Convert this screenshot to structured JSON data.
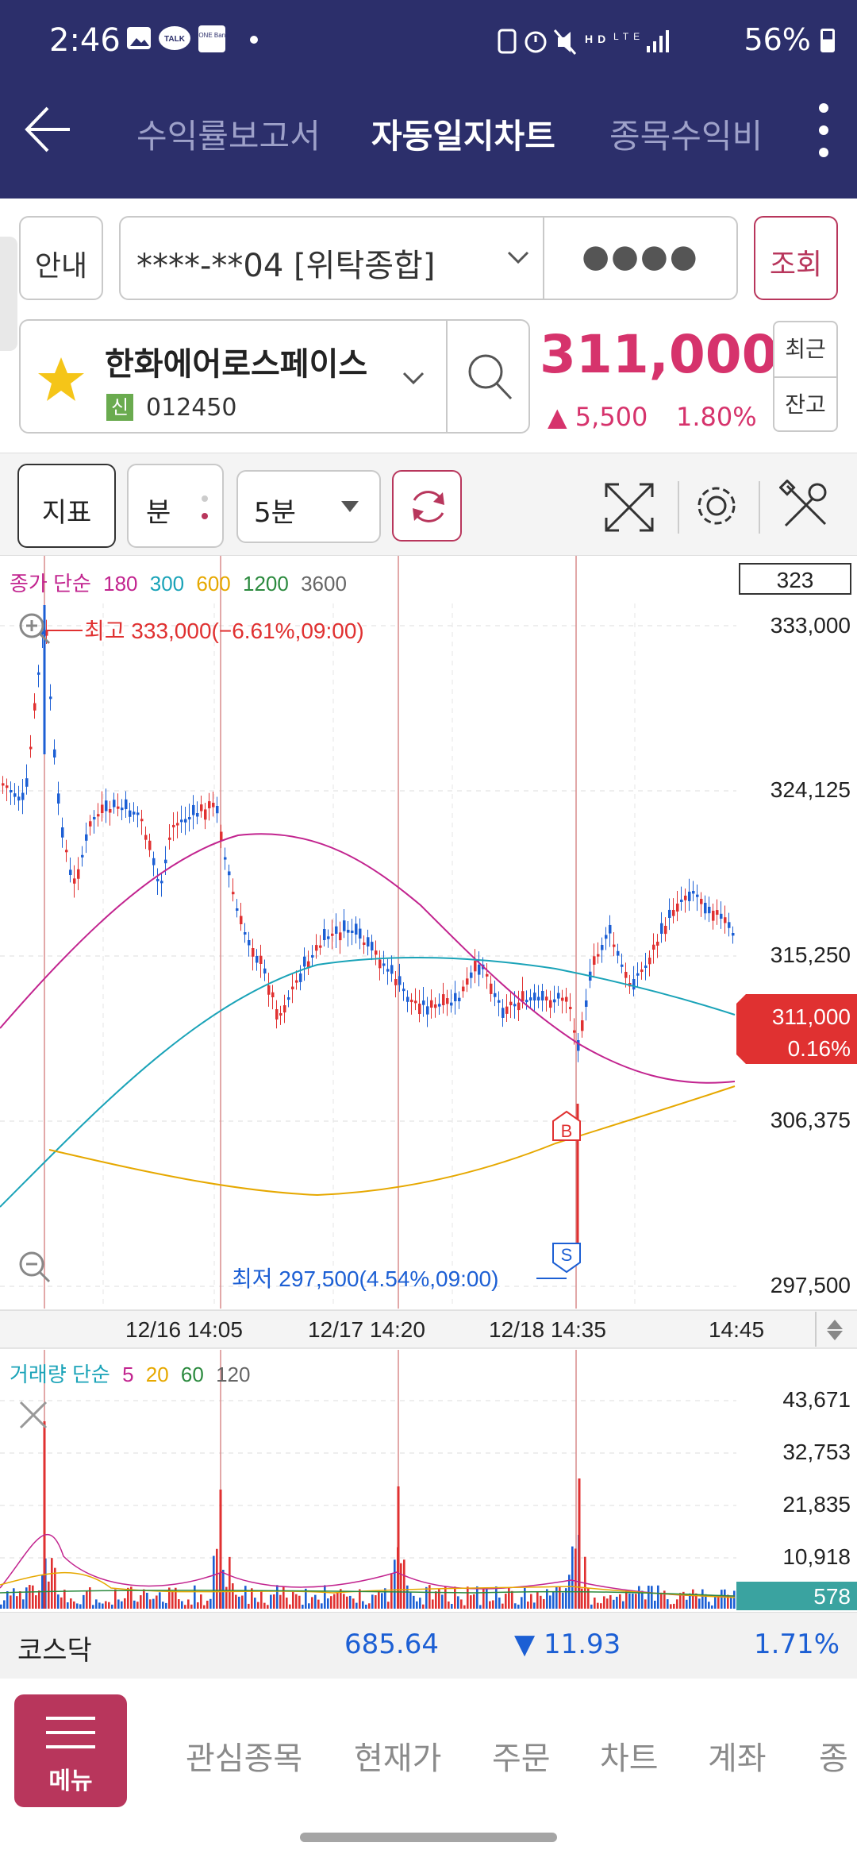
{
  "status_bar": {
    "time": "2:46",
    "battery": "56%",
    "left_icons": [
      "gallery-icon",
      "talk-icon",
      "ione-bank-icon",
      "dot-icon"
    ],
    "right_icons": [
      "nfc-icon",
      "alarm-icon",
      "mute-icon",
      "hd-voice-icon",
      "lte-icon",
      "signal-icon",
      "battery-icon"
    ],
    "talk_label": "TALK",
    "ione_label": "i-ONE Bank",
    "hd_label": "HD",
    "lte_label": "LTE"
  },
  "header": {
    "tabs": [
      {
        "label": "수익률보고서",
        "active": false
      },
      {
        "label": "자동일지차트",
        "active": true
      },
      {
        "label": "종목수익비"
      }
    ]
  },
  "account": {
    "guide_label": "안내",
    "account_number": "****-**04 [위탁종합]",
    "password_mask": "●●●●",
    "query_label": "조회"
  },
  "stock": {
    "name": "한화에어로스페이스",
    "credit_badge": "신",
    "code": "012450",
    "price": "311,000",
    "change": "▲ 5,500",
    "change_pct": "1.80%",
    "recent_label": "최근",
    "balance_label": "잔고",
    "accent": "#d6336c"
  },
  "toolbar": {
    "indicator_label": "지표",
    "minute_label": "분",
    "interval_value": "5분"
  },
  "price_chart": {
    "count_box": "323",
    "legend_title": "종가 단순",
    "ma_legend": [
      {
        "label": "180",
        "color": "#c2248f"
      },
      {
        "label": "300",
        "color": "#1aa3b8"
      },
      {
        "label": "600",
        "color": "#e6a800"
      },
      {
        "label": "1200",
        "color": "#2b8a3e"
      },
      {
        "label": "3600",
        "color": "#666666"
      }
    ],
    "y_ticks": [
      "333,000",
      "324,125",
      "315,250",
      "306,375",
      "297,500"
    ],
    "x_ticks": [
      "12/16 14:05",
      "12/17 14:20",
      "12/18 14:35",
      "14:45"
    ],
    "high_label": "최고 333,000(−6.61%,09:00)",
    "low_label": "최저 297,500(4.54%,09:00)",
    "current_price": "311,000",
    "current_pct": "0.16%",
    "buy_marker": "B",
    "sell_marker": "S",
    "up_color": "#e03131",
    "down_color": "#1c5fd4"
  },
  "volume_chart": {
    "legend_title": "거래량 단순",
    "ma_legend": [
      {
        "label": "5",
        "color": "#c2248f"
      },
      {
        "label": "20",
        "color": "#e6a800"
      },
      {
        "label": "60",
        "color": "#2b8a3e"
      },
      {
        "label": "120",
        "color": "#666666"
      }
    ],
    "y_ticks": [
      "43,671",
      "32,753",
      "21,835",
      "10,918"
    ],
    "current_volume": "578"
  },
  "market": {
    "name": "코스닥",
    "index": "685.64",
    "change": "▼ 11.93",
    "change_pct": "1.71%"
  },
  "bottom_nav": {
    "menu_label": "메뉴",
    "items": [
      "관심종목",
      "현재가",
      "주문",
      "차트",
      "계좌",
      "종"
    ]
  }
}
